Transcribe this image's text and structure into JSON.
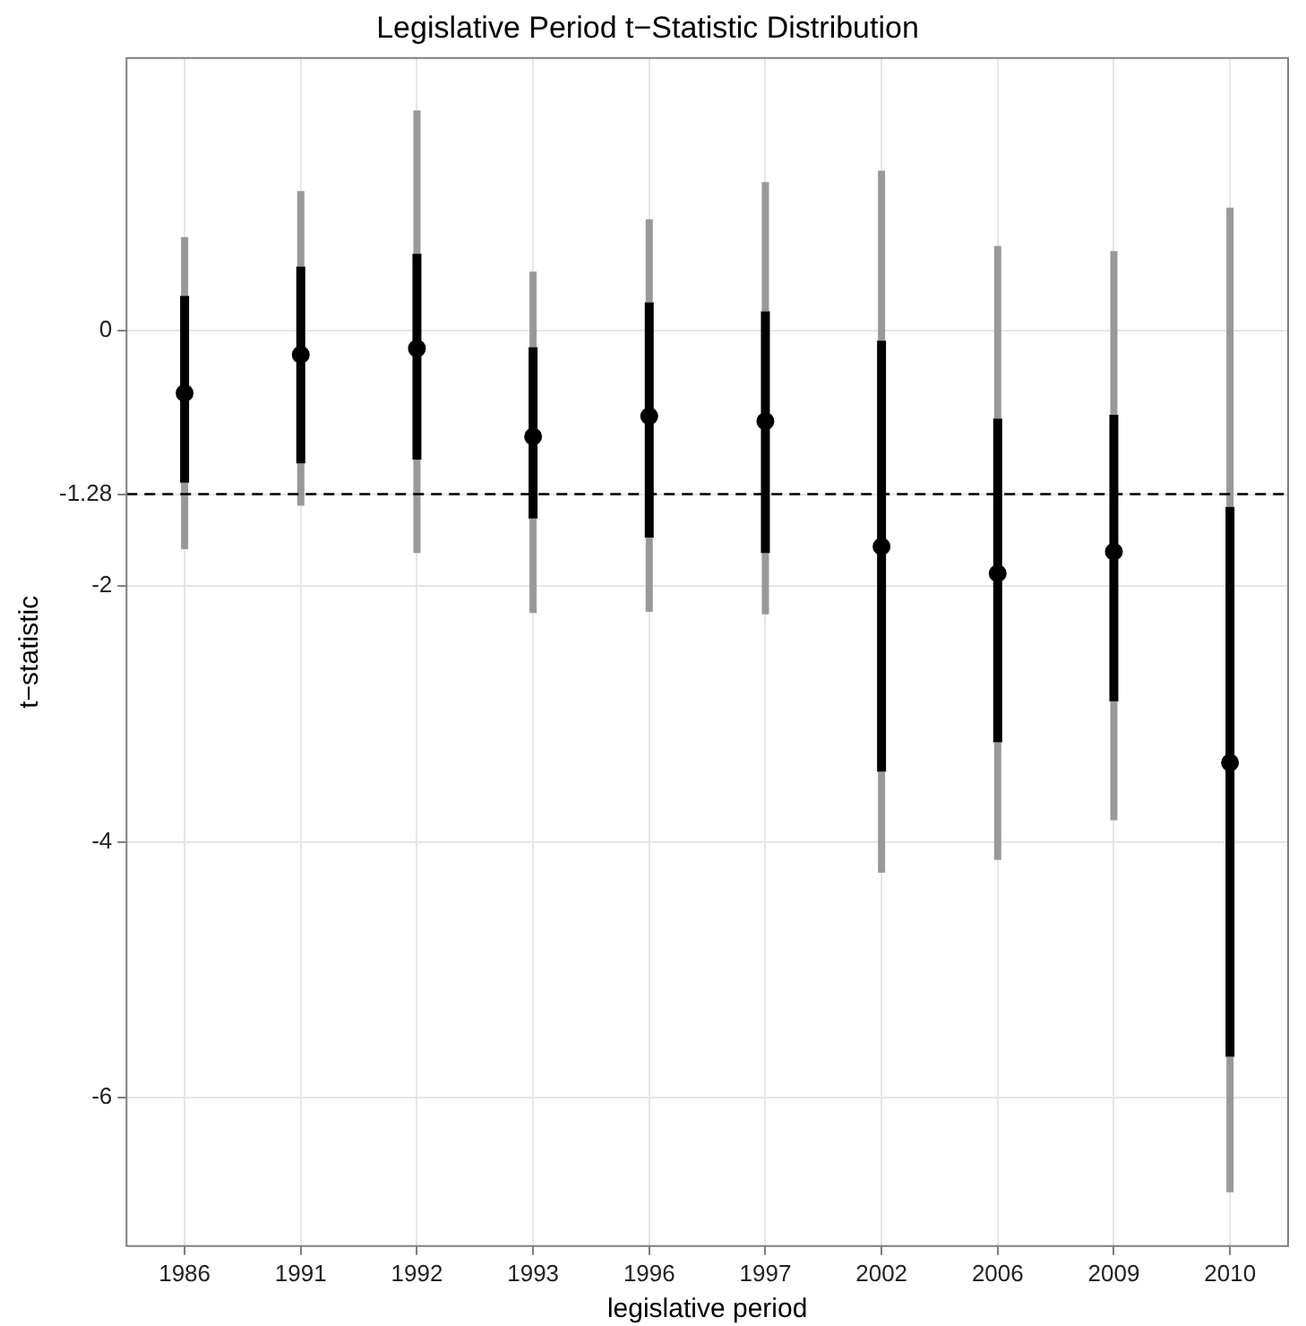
{
  "chart_data": {
    "type": "box",
    "title": "Legislative Period t−Statistic Distribution",
    "xlabel": "legislative period",
    "ylabel": "t−statistic",
    "categories": [
      "1986",
      "1991",
      "1992",
      "1993",
      "1996",
      "1997",
      "2002",
      "2006",
      "2009",
      "2010"
    ],
    "boxes": [
      {
        "low": -1.71,
        "q1": -1.19,
        "median": -0.49,
        "q3": 0.27,
        "high": 0.73
      },
      {
        "low": -1.37,
        "q1": -1.04,
        "median": -0.19,
        "q3": 0.5,
        "high": 1.09
      },
      {
        "low": -1.74,
        "q1": -1.01,
        "median": -0.14,
        "q3": 0.6,
        "high": 1.72
      },
      {
        "low": -2.21,
        "q1": -1.47,
        "median": -0.83,
        "q3": -0.13,
        "high": 0.46
      },
      {
        "low": -2.2,
        "q1": -1.62,
        "median": -0.67,
        "q3": 0.22,
        "high": 0.87
      },
      {
        "low": -2.22,
        "q1": -1.74,
        "median": -0.71,
        "q3": 0.15,
        "high": 1.16
      },
      {
        "low": -4.24,
        "q1": -3.45,
        "median": -1.69,
        "q3": -0.08,
        "high": 1.25
      },
      {
        "low": -4.14,
        "q1": -3.22,
        "median": -1.9,
        "q3": -0.69,
        "high": 0.66
      },
      {
        "low": -3.83,
        "q1": -2.9,
        "median": -1.73,
        "q3": -0.66,
        "high": 0.62
      },
      {
        "low": -6.74,
        "q1": -5.68,
        "median": -3.38,
        "q3": -1.38,
        "high": 0.96
      }
    ],
    "color": "#000000",
    "ylim": [
      -7.16,
      2.13
    ],
    "yticks": [
      0,
      -1.28,
      -2,
      -4,
      -6
    ],
    "ref_lines": [
      {
        "axis": "y",
        "value": -1.28,
        "line_style": "dashed",
        "color": "#000000"
      }
    ],
    "grid": true,
    "marker": "circle"
  }
}
